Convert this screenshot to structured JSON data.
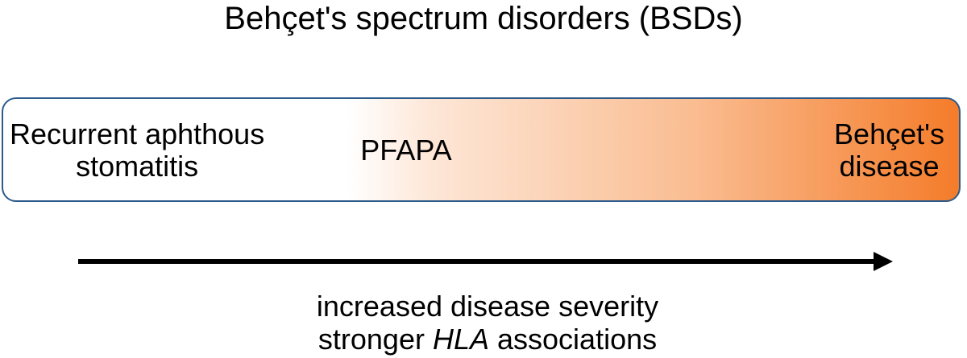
{
  "title": "Behçet's spectrum disorders (BSDs)",
  "colors": {
    "box_border": "#2c5a8a",
    "gradient_start": "#ffffff",
    "gradient_end": "#f47c2a",
    "arrow": "#000000"
  },
  "spectrum": {
    "left_label_line1": "Recurrent aphthous",
    "left_label_line2": "stomatitis",
    "middle_label": "PFAPA",
    "right_label_line1": "Behçet's",
    "right_label_line2": "disease"
  },
  "caption": {
    "line1": "increased disease severity",
    "line2_prefix": "stronger ",
    "line2_italic": "HLA",
    "line2_suffix": " associations"
  }
}
